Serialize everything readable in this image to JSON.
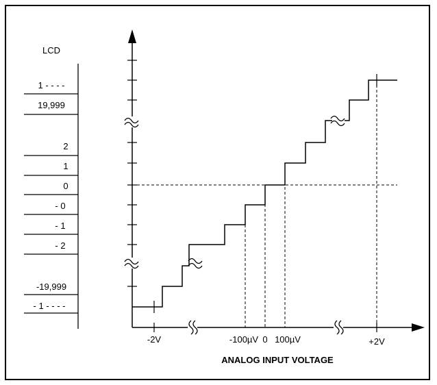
{
  "lcd_panel": {
    "header": "LCD",
    "readings": [
      "1 - - - -",
      "19,999",
      "2",
      "1",
      "0",
      "- 0",
      "- 1",
      "- 2",
      "-19,999",
      "- 1 - - - -"
    ]
  },
  "x_axis": {
    "title": "ANALOG INPUT VOLTAGE",
    "tick_labels": [
      "-2V",
      "-100µV",
      "0",
      "100µV",
      "+2V"
    ]
  },
  "colors": {
    "line": "#000000",
    "background": "#ffffff"
  },
  "symbols": [
    "axis-break-icon",
    "arrowhead-icon"
  ]
}
